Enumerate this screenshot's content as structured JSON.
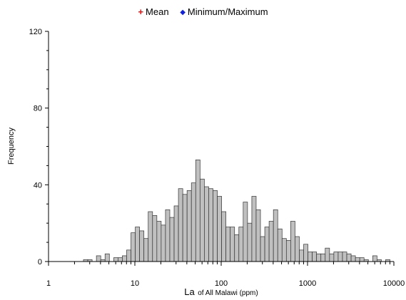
{
  "legend": {
    "mean_label": "Mean",
    "mean_symbol": "+",
    "mean_color": "#e01010",
    "minmax_label": "Minimum/Maximum",
    "minmax_symbol": "◆",
    "minmax_color": "#1020e0"
  },
  "chart_data": {
    "type": "bar",
    "subtype": "histogram",
    "x_scale": "log",
    "xlim": [
      1,
      10000
    ],
    "ylim": [
      0,
      120
    ],
    "x_ticks": [
      "1",
      "10",
      "100",
      "1000",
      "10000"
    ],
    "y_ticks": [
      "0",
      "40",
      "80",
      "120"
    ],
    "ylabel": "Frequency",
    "xlabel_main": "La",
    "xlabel_sub": "of All Malawi (ppm)",
    "grid": false,
    "legend_position": "top-center",
    "bar_color": "#c0c0c0",
    "bar_edge_color": "#333333",
    "bin_width_log10": 0.05,
    "bins_start_ppm": 2.54,
    "frequencies": [
      1,
      1,
      0,
      3,
      1,
      4,
      0,
      2,
      2,
      3,
      6,
      15,
      18,
      16,
      12,
      26,
      24,
      21,
      19,
      27,
      23,
      29,
      38,
      35,
      37,
      41,
      53,
      43,
      39,
      38,
      37,
      34,
      26,
      18,
      18,
      14,
      18,
      31,
      20,
      34,
      27,
      13,
      18,
      21,
      27,
      17,
      12,
      11,
      21,
      13,
      6,
      9,
      5,
      5,
      4,
      4,
      7,
      4,
      5,
      5,
      5,
      4,
      3,
      2,
      2,
      1,
      0,
      3,
      1,
      0,
      1,
      0,
      0,
      0,
      0,
      0,
      0,
      0,
      0,
      0,
      0,
      0,
      0,
      1
    ]
  }
}
